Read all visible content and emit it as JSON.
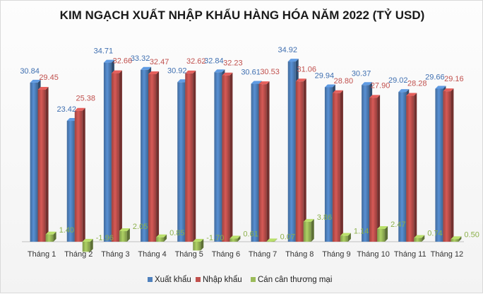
{
  "chart_data": {
    "type": "bar",
    "title": "KIM NGẠCH XUẤT NHẬP KHẨU HÀNG HÓA NĂM 2022 (TỶ USD)",
    "categories": [
      "Tháng 1",
      "Tháng 2",
      "Tháng 3",
      "Tháng 4",
      "Tháng 5",
      "Tháng 6",
      "Tháng 7",
      "Tháng 8",
      "Tháng 9",
      "Tháng 10",
      "Tháng 11",
      "Tháng 12"
    ],
    "series": [
      {
        "name": "Xuất khẩu",
        "color": "#4f81bd",
        "values": [
          30.84,
          23.42,
          34.71,
          33.32,
          30.92,
          32.84,
          30.61,
          34.92,
          29.94,
          30.37,
          29.02,
          29.66
        ]
      },
      {
        "name": "Nhập khẩu",
        "color": "#c0504d",
        "values": [
          29.45,
          25.38,
          32.66,
          32.47,
          32.62,
          32.23,
          30.53,
          31.06,
          28.8,
          27.9,
          28.28,
          29.16
        ]
      },
      {
        "name": "Cán cân thương mại",
        "color": "#9bbb59",
        "values": [
          1.4,
          -1.96,
          2.05,
          0.85,
          -1.7,
          0.61,
          0.07,
          3.86,
          1.14,
          2.47,
          0.74,
          0.5
        ]
      }
    ],
    "data_labels": {
      "Xuất khẩu": [
        "30.84",
        "23.42",
        "34.71",
        "33.32",
        "30.92",
        "32.84",
        "30.61",
        "34.92",
        "29.94",
        "30.37",
        "29.02",
        "29.66"
      ],
      "Nhập khẩu": [
        "29.45",
        "25.38",
        "32.66",
        "32.47",
        "32.62",
        "32.23",
        "30.53",
        "31.06",
        "28.80",
        "27.90",
        "28.28",
        "29.16"
      ],
      "Cán cân thương mại": [
        "1.40",
        "-1.96",
        "2.05",
        "0.85",
        "-1.70",
        "0.61",
        "0.07",
        "3.86",
        "1.14",
        "2.47",
        "0.74",
        "0.50"
      ]
    },
    "ylim": [
      -2,
      37
    ],
    "grid": false,
    "legend_position": "bottom"
  }
}
